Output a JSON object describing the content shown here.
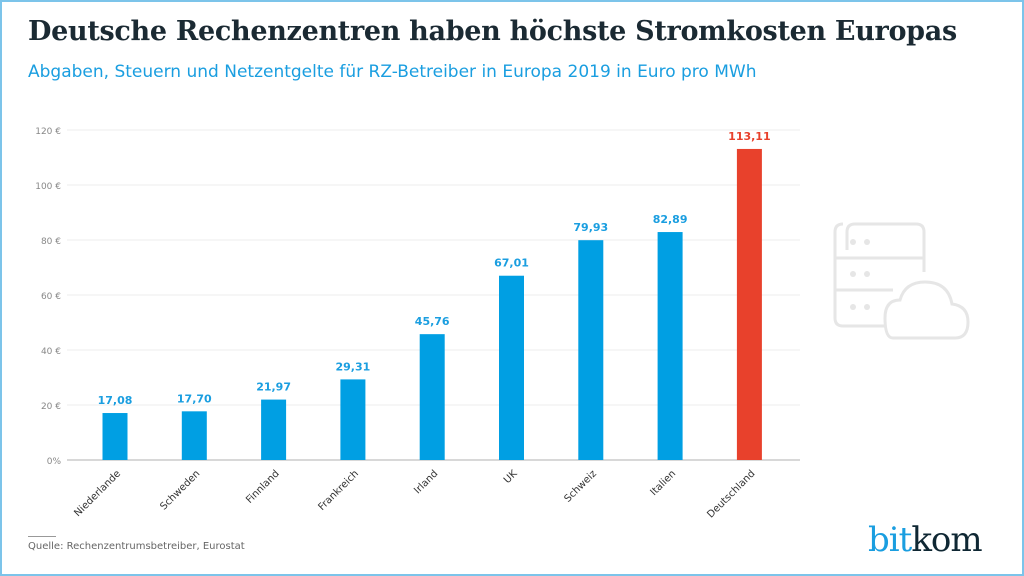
{
  "title": "Deutsche Rechenzentren haben höchste Stromkosten Europas",
  "subtitle": "Abgaben, Steuern und Netzentgelte für RZ-Betreiber in Europa 2019 in Euro pro MWh",
  "source": "Quelle: Rechenzentrumsbetreiber, Eurostat",
  "logo": {
    "part1": "bit",
    "part2": "kom"
  },
  "icon": "server-cloud-icon",
  "colors": {
    "bar": "#009fe3",
    "highlight": "#e8412c",
    "label": "#1a9ee0",
    "highlight_label": "#e8412c"
  },
  "chart_data": {
    "type": "bar",
    "title": "Deutsche Rechenzentren haben höchste Stromkosten Europas",
    "subtitle": "Abgaben, Steuern und Netzentgelte für RZ-Betreiber in Europa 2019 in Euro pro MWh",
    "categories": [
      "Niederlande",
      "Schweden",
      "Finnland",
      "Frankreich",
      "Irland",
      "UK",
      "Schweiz",
      "Italien",
      "Deutschland"
    ],
    "values": [
      17.08,
      17.7,
      21.97,
      29.31,
      45.76,
      67.01,
      79.93,
      82.89,
      113.11
    ],
    "value_labels": [
      "17,08",
      "17,70",
      "21,97",
      "29,31",
      "45,76",
      "67,01",
      "79,93",
      "82,89",
      "113,11"
    ],
    "highlight_index": 8,
    "ylim": [
      0,
      120
    ],
    "yticks": [
      0,
      20,
      40,
      60,
      80,
      100,
      120
    ],
    "ytick_labels": [
      "0%",
      "20 €",
      "40 €",
      "60 €",
      "80 €",
      "100 €",
      "120 €"
    ],
    "grid": true,
    "legend": "none"
  }
}
